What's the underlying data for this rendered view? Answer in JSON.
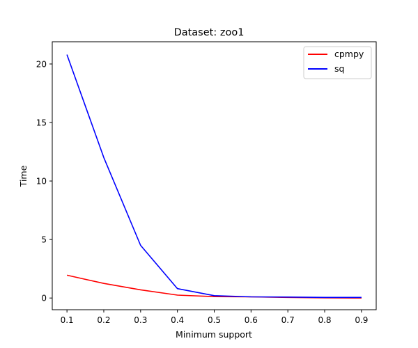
{
  "chart_data": {
    "type": "line",
    "title": "Dataset: zoo1",
    "xlabel": "Minimum support",
    "ylabel": "Time",
    "x": [
      0.1,
      0.2,
      0.3,
      0.4,
      0.5,
      0.6,
      0.7,
      0.8,
      0.9
    ],
    "xticks": [
      "0.1",
      "0.2",
      "0.3",
      "0.4",
      "0.5",
      "0.6",
      "0.7",
      "0.8",
      "0.9"
    ],
    "yticks": [
      "0",
      "5",
      "10",
      "15",
      "20"
    ],
    "xlim": [
      0.06,
      0.94
    ],
    "ylim": [
      -1.0,
      21.9
    ],
    "grid": false,
    "legend_position": "top-right",
    "series": [
      {
        "name": "cpmpy",
        "color": "#ff0000",
        "values": [
          1.95,
          1.25,
          0.7,
          0.25,
          0.12,
          0.1,
          0.05,
          0.02,
          0.0
        ]
      },
      {
        "name": "sq",
        "color": "#0000ff",
        "values": [
          20.8,
          12.0,
          4.5,
          0.8,
          0.2,
          0.1,
          0.08,
          0.05,
          0.05
        ]
      }
    ]
  }
}
